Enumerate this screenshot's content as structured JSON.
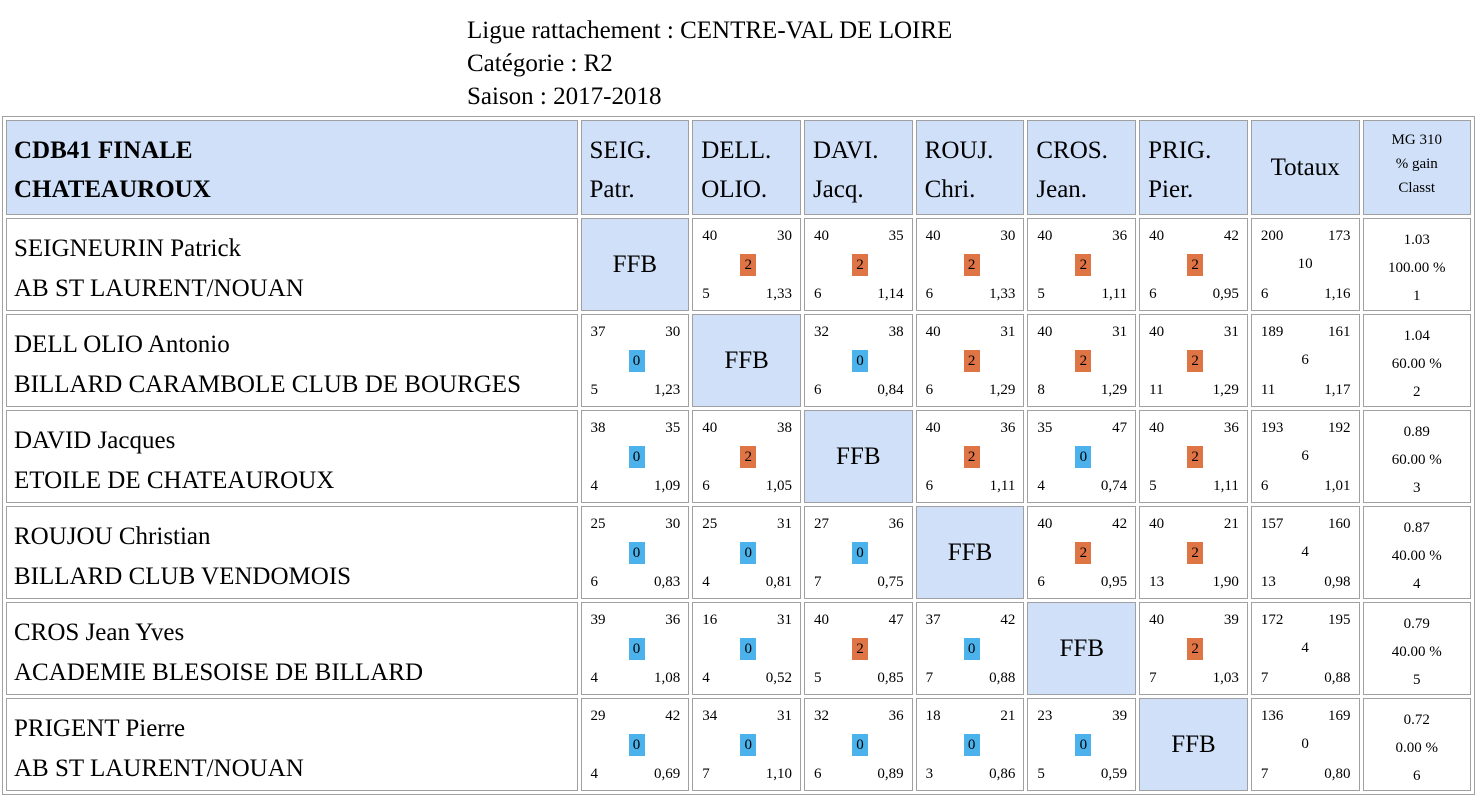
{
  "header": {
    "ligue": "Ligue rattachement : CENTRE-VAL DE LOIRE",
    "categorie": "Catégorie : R2",
    "saison": "Saison : 2017-2018"
  },
  "table": {
    "title_line1": "CDB41 FINALE",
    "title_line2": "CHATEAUROUX",
    "columns": [
      {
        "l1": "SEIG.",
        "l2": "Patr."
      },
      {
        "l1": "DELL.",
        "l2": "OLIO."
      },
      {
        "l1": "DAVI.",
        "l2": "Jacq."
      },
      {
        "l1": "ROUJ.",
        "l2": "Chri."
      },
      {
        "l1": "CROS.",
        "l2": "Jean."
      },
      {
        "l1": "PRIG.",
        "l2": "Pier."
      }
    ],
    "totaux_label": "Totaux",
    "mg_label1": "MG 310",
    "mg_label2": "% gain",
    "mg_label3": "Classt",
    "self_label": "FFB",
    "rows": [
      {
        "name": "SEIGNEURIN Patrick",
        "club": "AB ST LAURENT/NOUAN",
        "cells": [
          null,
          {
            "a": "40",
            "b": "30",
            "p": "2",
            "r": "5",
            "m": "1,33"
          },
          {
            "a": "40",
            "b": "35",
            "p": "2",
            "r": "6",
            "m": "1,14"
          },
          {
            "a": "40",
            "b": "30",
            "p": "2",
            "r": "6",
            "m": "1,33"
          },
          {
            "a": "40",
            "b": "36",
            "p": "2",
            "r": "5",
            "m": "1,11"
          },
          {
            "a": "40",
            "b": "42",
            "p": "2",
            "r": "6",
            "m": "0,95"
          }
        ],
        "tot": {
          "a": "200",
          "b": "173",
          "p": "10",
          "r": "6",
          "m": "1,16"
        },
        "mg": {
          "mg": "1.03",
          "pct": "100.00 %",
          "rank": "1"
        }
      },
      {
        "name": "DELL OLIO Antonio",
        "club": "BILLARD CARAMBOLE CLUB DE BOURGES",
        "cells": [
          {
            "a": "37",
            "b": "30",
            "p": "0",
            "r": "5",
            "m": "1,23"
          },
          null,
          {
            "a": "32",
            "b": "38",
            "p": "0",
            "r": "6",
            "m": "0,84"
          },
          {
            "a": "40",
            "b": "31",
            "p": "2",
            "r": "6",
            "m": "1,29"
          },
          {
            "a": "40",
            "b": "31",
            "p": "2",
            "r": "8",
            "m": "1,29"
          },
          {
            "a": "40",
            "b": "31",
            "p": "2",
            "r": "11",
            "m": "1,29"
          }
        ],
        "tot": {
          "a": "189",
          "b": "161",
          "p": "6",
          "r": "11",
          "m": "1,17"
        },
        "mg": {
          "mg": "1.04",
          "pct": "60.00 %",
          "rank": "2"
        }
      },
      {
        "name": "DAVID Jacques",
        "club": "ETOILE DE CHATEAUROUX",
        "cells": [
          {
            "a": "38",
            "b": "35",
            "p": "0",
            "r": "4",
            "m": "1,09"
          },
          {
            "a": "40",
            "b": "38",
            "p": "2",
            "r": "6",
            "m": "1,05"
          },
          null,
          {
            "a": "40",
            "b": "36",
            "p": "2",
            "r": "6",
            "m": "1,11"
          },
          {
            "a": "35",
            "b": "47",
            "p": "0",
            "r": "4",
            "m": "0,74"
          },
          {
            "a": "40",
            "b": "36",
            "p": "2",
            "r": "5",
            "m": "1,11"
          }
        ],
        "tot": {
          "a": "193",
          "b": "192",
          "p": "6",
          "r": "6",
          "m": "1,01"
        },
        "mg": {
          "mg": "0.89",
          "pct": "60.00 %",
          "rank": "3"
        }
      },
      {
        "name": "ROUJOU Christian",
        "club": "BILLARD CLUB VENDOMOIS",
        "cells": [
          {
            "a": "25",
            "b": "30",
            "p": "0",
            "r": "6",
            "m": "0,83"
          },
          {
            "a": "25",
            "b": "31",
            "p": "0",
            "r": "4",
            "m": "0,81"
          },
          {
            "a": "27",
            "b": "36",
            "p": "0",
            "r": "7",
            "m": "0,75"
          },
          null,
          {
            "a": "40",
            "b": "42",
            "p": "2",
            "r": "6",
            "m": "0,95"
          },
          {
            "a": "40",
            "b": "21",
            "p": "2",
            "r": "13",
            "m": "1,90"
          }
        ],
        "tot": {
          "a": "157",
          "b": "160",
          "p": "4",
          "r": "13",
          "m": "0,98"
        },
        "mg": {
          "mg": "0.87",
          "pct": "40.00 %",
          "rank": "4"
        }
      },
      {
        "name": "CROS Jean Yves",
        "club": "ACADEMIE BLESOISE DE BILLARD",
        "cells": [
          {
            "a": "39",
            "b": "36",
            "p": "0",
            "r": "4",
            "m": "1,08"
          },
          {
            "a": "16",
            "b": "31",
            "p": "0",
            "r": "4",
            "m": "0,52"
          },
          {
            "a": "40",
            "b": "47",
            "p": "2",
            "r": "5",
            "m": "0,85"
          },
          {
            "a": "37",
            "b": "42",
            "p": "0",
            "r": "7",
            "m": "0,88"
          },
          null,
          {
            "a": "40",
            "b": "39",
            "p": "2",
            "r": "7",
            "m": "1,03"
          }
        ],
        "tot": {
          "a": "172",
          "b": "195",
          "p": "4",
          "r": "7",
          "m": "0,88"
        },
        "mg": {
          "mg": "0.79",
          "pct": "40.00 %",
          "rank": "5"
        }
      },
      {
        "name": "PRIGENT Pierre",
        "club": "AB ST LAURENT/NOUAN",
        "cells": [
          {
            "a": "29",
            "b": "42",
            "p": "0",
            "r": "4",
            "m": "0,69"
          },
          {
            "a": "34",
            "b": "31",
            "p": "0",
            "r": "7",
            "m": "1,10"
          },
          {
            "a": "32",
            "b": "36",
            "p": "0",
            "r": "6",
            "m": "0,89"
          },
          {
            "a": "18",
            "b": "21",
            "p": "0",
            "r": "3",
            "m": "0,86"
          },
          {
            "a": "23",
            "b": "39",
            "p": "0",
            "r": "5",
            "m": "0,59"
          },
          null
        ],
        "tot": {
          "a": "136",
          "b": "169",
          "p": "0",
          "r": "7",
          "m": "0,80"
        },
        "mg": {
          "mg": "0.72",
          "pct": "0.00 %",
          "rank": "6"
        }
      }
    ]
  }
}
